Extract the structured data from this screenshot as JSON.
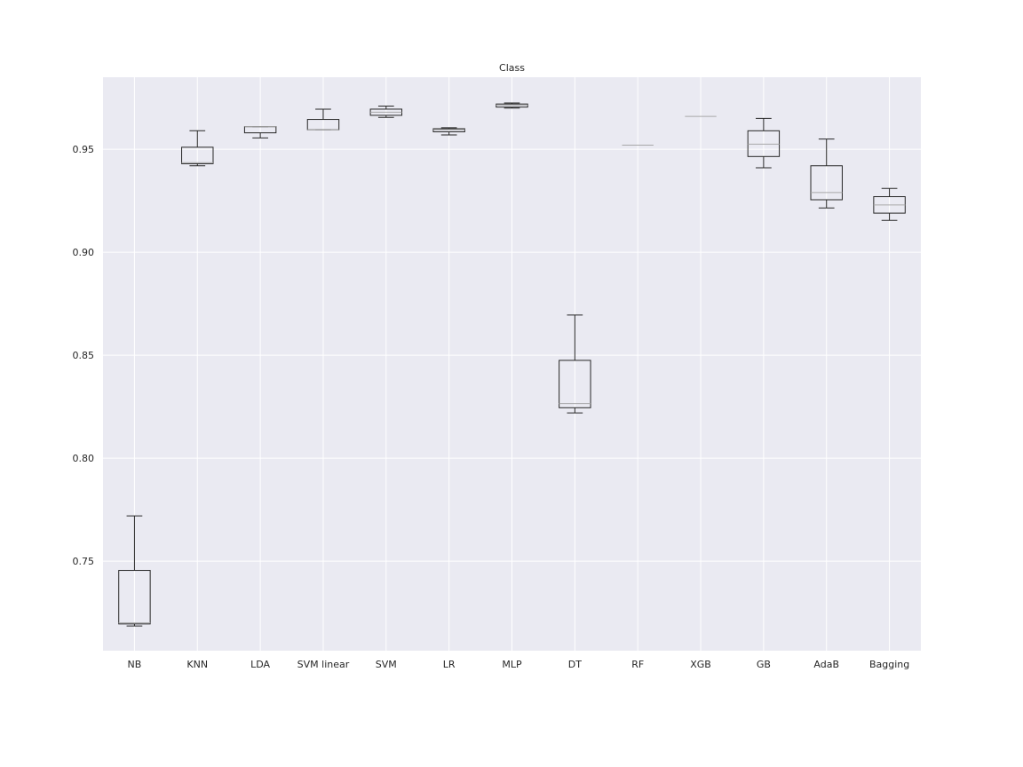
{
  "chart_data": {
    "type": "box",
    "title": "Class",
    "xlabel": "",
    "ylabel": "",
    "ylim": [
      0.7065,
      0.985
    ],
    "yticks": [
      0.75,
      0.8,
      0.85,
      0.9,
      0.95
    ],
    "ytick_labels": [
      "0.75",
      "0.80",
      "0.85",
      "0.90",
      "0.95"
    ],
    "grid": true,
    "categories": [
      "NB",
      "KNN",
      "LDA",
      "SVM linear",
      "SVM",
      "LR",
      "MLP",
      "DT",
      "RF",
      "XGB",
      "GB",
      "AdaB",
      "Bagging"
    ],
    "boxes": [
      {
        "label": "NB",
        "whislo": 0.7185,
        "q1": 0.7195,
        "med": 0.72,
        "q3": 0.7455,
        "whishi": 0.772
      },
      {
        "label": "KNN",
        "whislo": 0.942,
        "q1": 0.943,
        "med": 0.9435,
        "q3": 0.951,
        "whishi": 0.959
      },
      {
        "label": "LDA",
        "whislo": 0.9555,
        "q1": 0.958,
        "med": 0.961,
        "q3": 0.961,
        "whishi": 0.961
      },
      {
        "label": "SVM linear",
        "whislo": 0.9595,
        "q1": 0.9595,
        "med": 0.9595,
        "q3": 0.9645,
        "whishi": 0.9695
      },
      {
        "label": "SVM",
        "whislo": 0.9655,
        "q1": 0.9665,
        "med": 0.968,
        "q3": 0.9695,
        "whishi": 0.971
      },
      {
        "label": "LR",
        "whislo": 0.957,
        "q1": 0.9585,
        "med": 0.9595,
        "q3": 0.96,
        "whishi": 0.9605
      },
      {
        "label": "MLP",
        "whislo": 0.97,
        "q1": 0.9705,
        "med": 0.9715,
        "q3": 0.972,
        "whishi": 0.9725
      },
      {
        "label": "DT",
        "whislo": 0.822,
        "q1": 0.8245,
        "med": 0.8265,
        "q3": 0.8475,
        "whishi": 0.8695
      },
      {
        "label": "RF",
        "whislo": 0.952,
        "q1": 0.952,
        "med": 0.952,
        "q3": 0.952,
        "whishi": 0.952
      },
      {
        "label": "XGB",
        "whislo": 0.966,
        "q1": 0.966,
        "med": 0.966,
        "q3": 0.966,
        "whishi": 0.966
      },
      {
        "label": "GB",
        "whislo": 0.941,
        "q1": 0.9465,
        "med": 0.9525,
        "q3": 0.959,
        "whishi": 0.965
      },
      {
        "label": "AdaB",
        "whislo": 0.9215,
        "q1": 0.9255,
        "med": 0.929,
        "q3": 0.942,
        "whishi": 0.955
      },
      {
        "label": "Bagging",
        "whislo": 0.9155,
        "q1": 0.919,
        "med": 0.923,
        "q3": 0.927,
        "whishi": 0.931
      }
    ]
  },
  "colors": {
    "plot_background": "#eaeaf2",
    "grid": "#ffffff",
    "box": "#262626",
    "median": "#a8a8a8",
    "text": "#262626"
  }
}
